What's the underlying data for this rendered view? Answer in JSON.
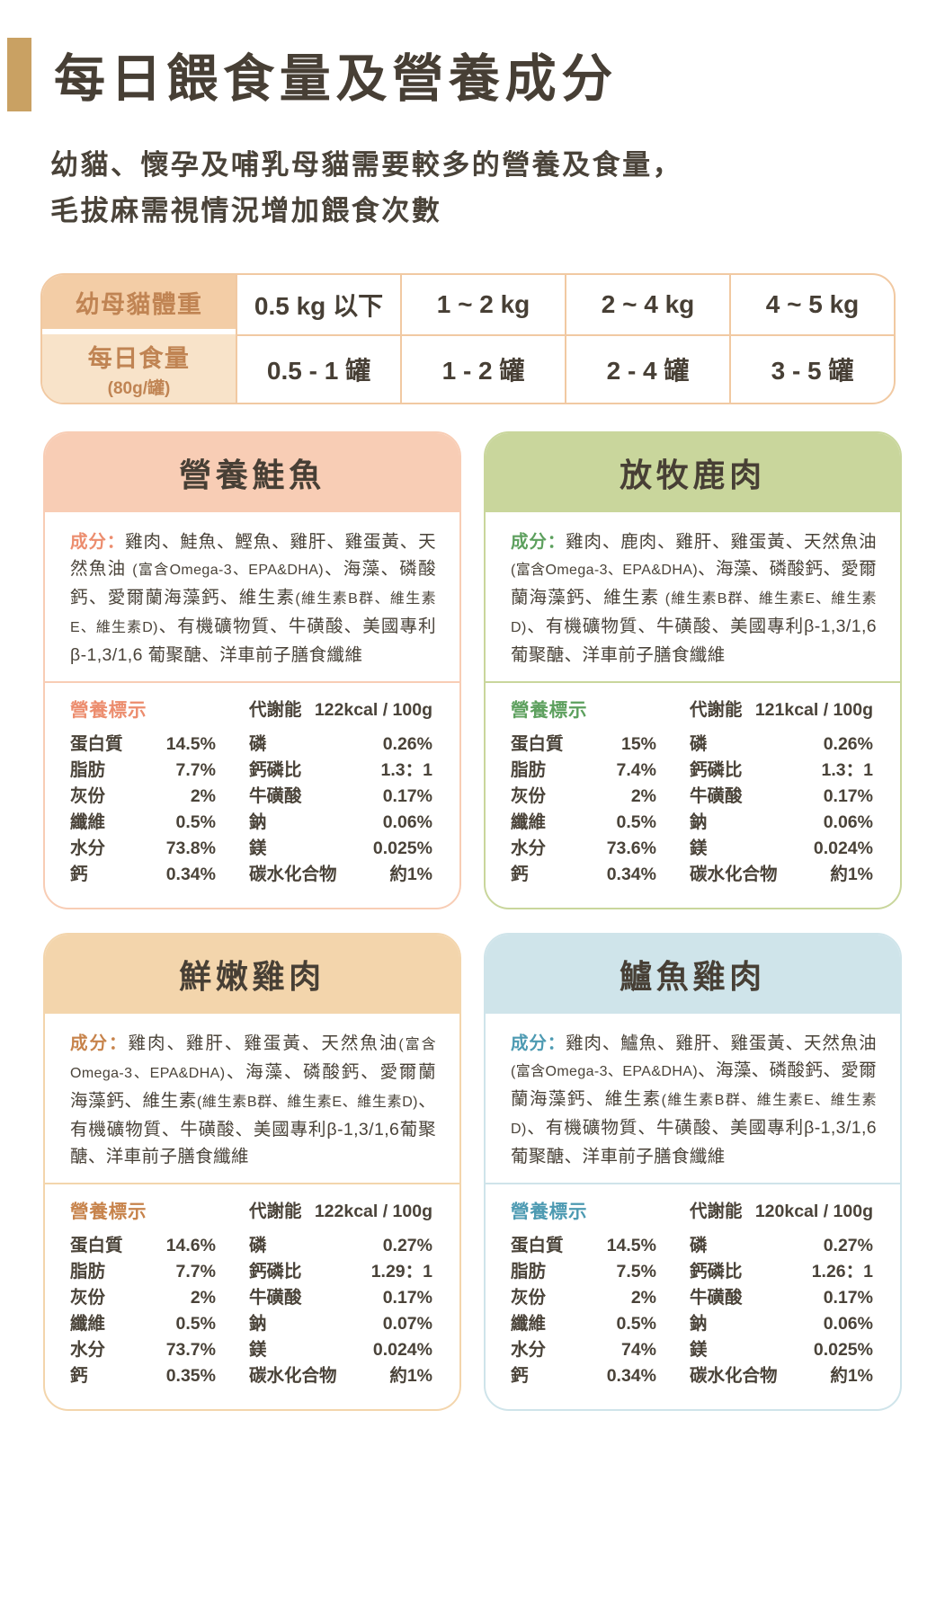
{
  "page": {
    "title": "每日餵食量及營養成分",
    "subtitle_line1": "幼貓、懷孕及哺乳母貓需要較多的營養及食量，",
    "subtitle_line2": "毛拔麻需視情況增加餵食次數"
  },
  "colors": {
    "title_bar": "#c9a163",
    "table_line": "#f1c9a2",
    "table_header_text": "#c08453",
    "table_row1_bg": "#f3cda6",
    "table_row2_bg": "#f8e3c9",
    "text_dark": "#473f35"
  },
  "feeding_table": {
    "weight_row": {
      "label": "幼母貓體重",
      "cells": [
        "0.5 kg 以下",
        "1 ~ 2 kg",
        "2 ~ 4 kg",
        "4 ~ 5 kg"
      ]
    },
    "amount_row": {
      "label": "每日食量",
      "sublabel": "(80g/罐)",
      "cells": [
        "0.5 - 1 罐",
        "1 - 2 罐",
        "2 - 4 罐",
        "3 - 5 罐"
      ]
    }
  },
  "cards": [
    {
      "title": "營養鮭魚",
      "colors": {
        "header_bg": "#f8cdb5",
        "border": "#f8cdb5",
        "accent": "#ec8d6e"
      },
      "ingredients_label": "成分：",
      "ingredients_segments": [
        {
          "text": "雞肉、鮭魚、鰹魚、雞肝、雞蛋黃、天然魚油 ",
          "small": false
        },
        {
          "text": "(富含Omega-3、EPA&DHA)",
          "small": true
        },
        {
          "text": "、海藻、磷酸鈣、愛爾蘭海藻鈣、維生素",
          "small": false
        },
        {
          "text": "(維生素B群、維生素E、維生素D)",
          "small": true
        },
        {
          "text": "、有機礦物質、牛磺酸、美國專利β-1,3/1,6 葡聚醣、洋車前子膳食纖維",
          "small": false
        }
      ],
      "nutrition_title": "營養標示",
      "energy_label": "代謝能",
      "energy_value": "122kcal / 100g",
      "nutrition_rows": [
        {
          "label1": "蛋白質",
          "value1": "14.5%",
          "label2": "磷",
          "value2": "0.26%"
        },
        {
          "label1": "脂肪",
          "value1": "7.7%",
          "label2": "鈣磷比",
          "value2": "1.3：1"
        },
        {
          "label1": "灰份",
          "value1": "2%",
          "label2": "牛磺酸",
          "value2": "0.17%"
        },
        {
          "label1": "纖維",
          "value1": "0.5%",
          "label2": "鈉",
          "value2": "0.06%"
        },
        {
          "label1": "水分",
          "value1": "73.8%",
          "label2": "鎂",
          "value2": "0.025%"
        },
        {
          "label1": "鈣",
          "value1": "0.34%",
          "label2": "碳水化合物",
          "value2": "約1%"
        }
      ]
    },
    {
      "title": "放牧鹿肉",
      "colors": {
        "header_bg": "#c9d69c",
        "border": "#c9d69c",
        "accent": "#5da05e"
      },
      "ingredients_label": "成分：",
      "ingredients_segments": [
        {
          "text": "雞肉、鹿肉、雞肝、雞蛋黃、天然魚油 ",
          "small": false
        },
        {
          "text": "(富含Omega-3、EPA&DHA)",
          "small": true
        },
        {
          "text": "、海藻、磷酸鈣、愛爾蘭海藻鈣、維生素 ",
          "small": false
        },
        {
          "text": "(維生素B群、維生素E、維生素D)",
          "small": true
        },
        {
          "text": "、有機礦物質、牛磺酸、美國專利β-1,3/1,6葡聚醣、洋車前子膳食纖維",
          "small": false
        }
      ],
      "nutrition_title": "營養標示",
      "energy_label": "代謝能",
      "energy_value": "121kcal / 100g",
      "nutrition_rows": [
        {
          "label1": "蛋白質",
          "value1": "15%",
          "label2": "磷",
          "value2": "0.26%"
        },
        {
          "label1": "脂肪",
          "value1": "7.4%",
          "label2": "鈣磷比",
          "value2": "1.3：1"
        },
        {
          "label1": "灰份",
          "value1": "2%",
          "label2": "牛磺酸",
          "value2": "0.17%"
        },
        {
          "label1": "纖維",
          "value1": "0.5%",
          "label2": "鈉",
          "value2": "0.06%"
        },
        {
          "label1": "水分",
          "value1": "73.6%",
          "label2": "鎂",
          "value2": "0.024%"
        },
        {
          "label1": "鈣",
          "value1": "0.34%",
          "label2": "碳水化合物",
          "value2": "約1%"
        }
      ]
    },
    {
      "title": "鮮嫩雞肉",
      "colors": {
        "header_bg": "#f3d5ac",
        "border": "#f3d5ac",
        "accent": "#c7834b"
      },
      "ingredients_label": "成分：",
      "ingredients_segments": [
        {
          "text": "雞肉、雞肝、雞蛋黃、天然魚油",
          "small": false
        },
        {
          "text": "(富含Omega-3、EPA&DHA)",
          "small": true
        },
        {
          "text": "、海藻、磷酸鈣、愛爾蘭海藻鈣、維生素",
          "small": false
        },
        {
          "text": "(維生素B群、維生素E、維生素D)",
          "small": true
        },
        {
          "text": "、有機礦物質、牛磺酸、美國專利β-1,3/1,6葡聚醣、洋車前子膳食纖維",
          "small": false
        }
      ],
      "nutrition_title": "營養標示",
      "energy_label": "代謝能",
      "energy_value": "122kcal / 100g",
      "nutrition_rows": [
        {
          "label1": "蛋白質",
          "value1": "14.6%",
          "label2": "磷",
          "value2": "0.27%"
        },
        {
          "label1": "脂肪",
          "value1": "7.7%",
          "label2": "鈣磷比",
          "value2": "1.29：1"
        },
        {
          "label1": "灰份",
          "value1": "2%",
          "label2": "牛磺酸",
          "value2": "0.17%"
        },
        {
          "label1": "纖維",
          "value1": "0.5%",
          "label2": "鈉",
          "value2": "0.07%"
        },
        {
          "label1": "水分",
          "value1": "73.7%",
          "label2": "鎂",
          "value2": "0.024%"
        },
        {
          "label1": "鈣",
          "value1": "0.35%",
          "label2": "碳水化合物",
          "value2": "約1%"
        }
      ]
    },
    {
      "title": "鱸魚雞肉",
      "colors": {
        "header_bg": "#cfe4ea",
        "border": "#cfe4ea",
        "accent": "#4d9ab2"
      },
      "ingredients_label": "成分：",
      "ingredients_segments": [
        {
          "text": "雞肉、鱸魚、雞肝、雞蛋黃、天然魚油",
          "small": false
        },
        {
          "text": "(富含Omega-3、EPA&DHA)",
          "small": true
        },
        {
          "text": "、海藻、磷酸鈣、愛爾蘭海藻鈣、維生素",
          "small": false
        },
        {
          "text": "(維生素B群、維生素E、維生素D)",
          "small": true
        },
        {
          "text": "、有機礦物質、牛磺酸、美國專利β-1,3/1,6葡聚醣、洋車前子膳食纖維",
          "small": false
        }
      ],
      "nutrition_title": "營養標示",
      "energy_label": "代謝能",
      "energy_value": "120kcal / 100g",
      "nutrition_rows": [
        {
          "label1": "蛋白質",
          "value1": "14.5%",
          "label2": "磷",
          "value2": "0.27%"
        },
        {
          "label1": "脂肪",
          "value1": "7.5%",
          "label2": "鈣磷比",
          "value2": "1.26：1"
        },
        {
          "label1": "灰份",
          "value1": "2%",
          "label2": "牛磺酸",
          "value2": "0.17%"
        },
        {
          "label1": "纖維",
          "value1": "0.5%",
          "label2": "鈉",
          "value2": "0.06%"
        },
        {
          "label1": "水分",
          "value1": "74%",
          "label2": "鎂",
          "value2": "0.025%"
        },
        {
          "label1": "鈣",
          "value1": "0.34%",
          "label2": "碳水化合物",
          "value2": "約1%"
        }
      ]
    }
  ]
}
